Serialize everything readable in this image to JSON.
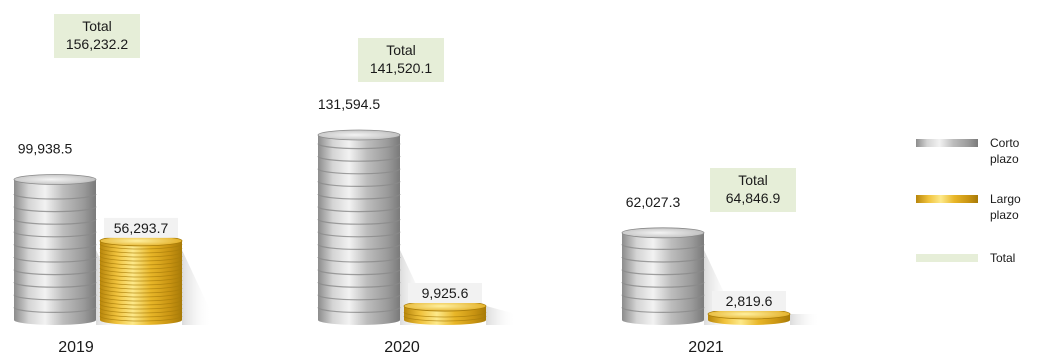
{
  "chart_data": {
    "type": "bar",
    "categories": [
      "2019",
      "2020",
      "2021"
    ],
    "series": [
      {
        "name": "Corto plazo",
        "values": [
          99938.5,
          131594.5,
          62027.3
        ],
        "labels": [
          "99,938.5",
          "131,594.5",
          "62,027.3"
        ],
        "color": "#b5b5b5"
      },
      {
        "name": "Largo plazo",
        "values": [
          56293.7,
          9925.6,
          2819.6
        ],
        "labels": [
          "56,293.7",
          "9,925.6",
          "2,819.6"
        ],
        "color": "#e8b628"
      }
    ],
    "totals": {
      "name": "Total",
      "values": [
        156232.2,
        141520.1,
        64846.9
      ],
      "labels": [
        "156,232.2",
        "141,520.1",
        "64,846.9"
      ],
      "caption": "Total",
      "color": "#e6eed8"
    },
    "legend": {
      "placement": "right",
      "items": [
        {
          "line1": "Corto",
          "line2": "plazo"
        },
        {
          "line1": "Largo",
          "line2": "plazo"
        },
        {
          "line1": "Total",
          "line2": ""
        }
      ]
    }
  }
}
